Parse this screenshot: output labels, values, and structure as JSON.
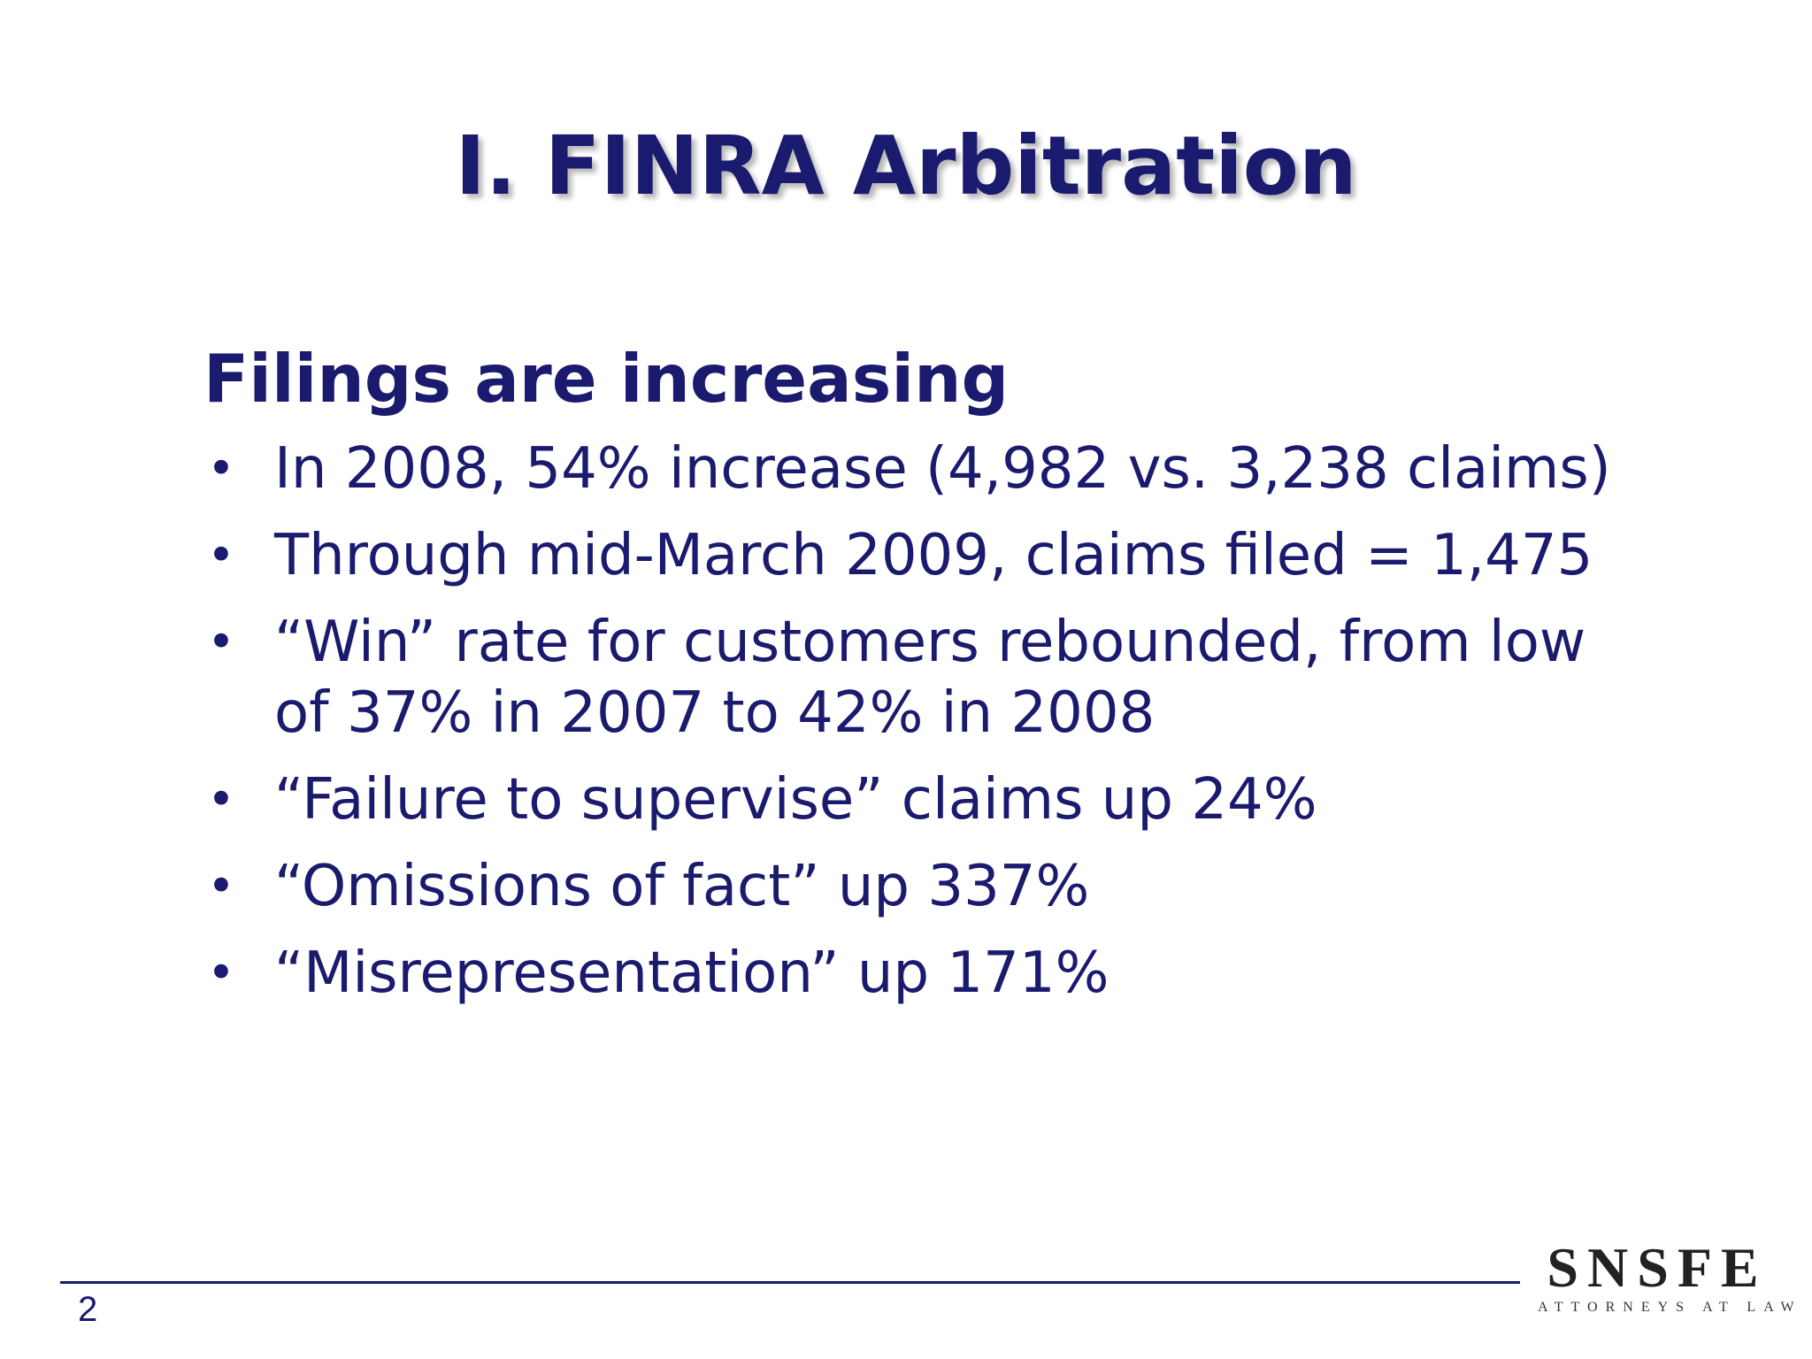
{
  "slide": {
    "title": "I.  FINRA Arbitration",
    "heading": "Filings are increasing",
    "bullet_glyph": "•",
    "bullets": [
      "In 2008, 54% increase (4,982 vs. 3,238 claims)",
      "Through mid-March 2009, claims filed = 1,475",
      "“Win” rate for customers rebounded, from low of 37% in 2007 to 42% in 2008",
      "“Failure to supervise” claims up 24%",
      "“Omissions of fact” up 337%",
      "“Misrepresentation” up 171%"
    ],
    "page_number": "2"
  },
  "logo": {
    "name": "SNSFE",
    "tagline": "ATTORNEYS AT LAW"
  },
  "colors": {
    "text": "#1a1a6e",
    "background": "#ffffff"
  }
}
